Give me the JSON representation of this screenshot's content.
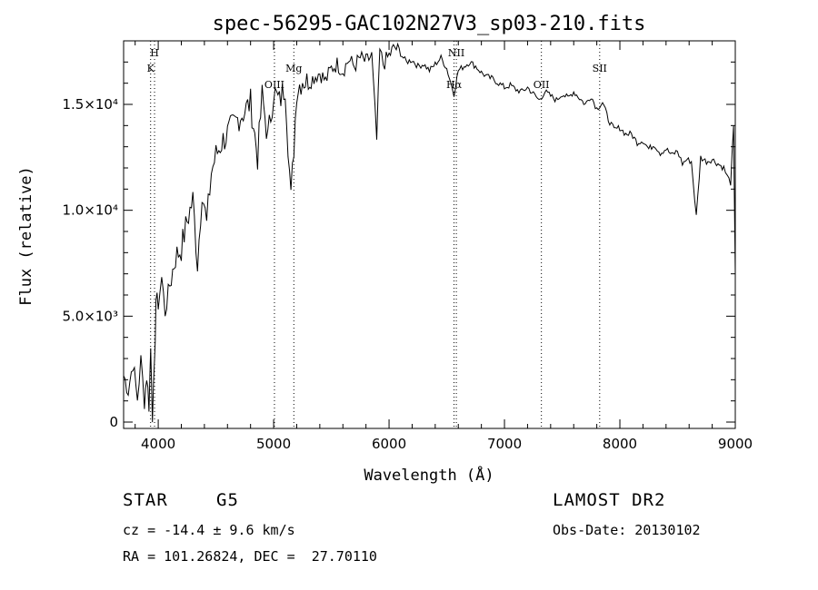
{
  "chart_data": {
    "type": "line",
    "title": "spec-56295-GAC102N27V3_sp03-210.fits",
    "xlabel": "Wavelength (Å)",
    "ylabel": "Flux (relative)",
    "xlim": [
      3700,
      9000
    ],
    "ylim": [
      -300,
      18000
    ],
    "x_ticks": [
      4000,
      5000,
      6000,
      7000,
      8000,
      9000
    ],
    "x_tick_labels": [
      "4000",
      "5000",
      "6000",
      "7000",
      "8000",
      "9000"
    ],
    "y_ticks": [
      0,
      5000,
      10000,
      15000
    ],
    "y_tick_labels": [
      "0",
      "5.0×10³",
      "1.0×10⁴",
      "1.5×10⁴"
    ],
    "grid": false,
    "line_color": "#000000",
    "marker_line_style": "dotted",
    "series": [
      {
        "x": [
          3700,
          3740,
          3780,
          3820,
          3850,
          3880,
          3900,
          3920,
          3935,
          3950,
          3968,
          3980,
          4000,
          4030,
          4060,
          4100,
          4150,
          4200,
          4250,
          4300,
          4340,
          4380,
          4420,
          4460,
          4500,
          4550,
          4600,
          4650,
          4700,
          4750,
          4800,
          4861,
          4900,
          4950,
          5000,
          5050,
          5100,
          5150,
          5175,
          5200,
          5250,
          5300,
          5350,
          5400,
          5450,
          5500,
          5550,
          5600,
          5650,
          5700,
          5750,
          5800,
          5850,
          5893,
          5920,
          5950,
          6000,
          6050,
          6100,
          6150,
          6200,
          6250,
          6300,
          6350,
          6400,
          6450,
          6500,
          6563,
          6600,
          6650,
          6700,
          6750,
          6800,
          6850,
          6900,
          6950,
          7000,
          7050,
          7100,
          7150,
          7200,
          7250,
          7300,
          7350,
          7400,
          7450,
          7500,
          7550,
          7600,
          7650,
          7700,
          7750,
          7800,
          7850,
          7900,
          7950,
          8000,
          8050,
          8100,
          8150,
          8200,
          8250,
          8300,
          8350,
          8400,
          8450,
          8498,
          8542,
          8580,
          8620,
          8662,
          8700,
          8750,
          8800,
          8850,
          8900,
          8930,
          8960,
          8985,
          9000
        ],
        "y": [
          2200,
          1500,
          2800,
          1100,
          2900,
          1000,
          2200,
          800,
          3500,
          400,
          2500,
          5800,
          5600,
          6800,
          5200,
          6500,
          7800,
          8200,
          9500,
          10500,
          7500,
          11000,
          9300,
          11800,
          12600,
          13200,
          13600,
          14000,
          14400,
          14700,
          15100,
          12500,
          15400,
          13400,
          15600,
          15100,
          15900,
          10500,
          13000,
          15700,
          16200,
          16000,
          16300,
          16500,
          16100,
          16700,
          16900,
          16600,
          17100,
          16800,
          17200,
          17000,
          17300,
          13300,
          17500,
          16900,
          17300,
          17700,
          17400,
          17000,
          17100,
          16800,
          16900,
          16600,
          16900,
          17200,
          16700,
          15500,
          16600,
          16800,
          17000,
          16800,
          16500,
          16300,
          16200,
          16000,
          15800,
          15900,
          15700,
          15600,
          15800,
          15500,
          15200,
          15600,
          15400,
          15200,
          15500,
          15300,
          15600,
          15300,
          15000,
          15400,
          14800,
          15100,
          14300,
          13800,
          13900,
          13600,
          13600,
          13200,
          13300,
          12900,
          13100,
          12700,
          12900,
          12600,
          12800,
          12200,
          12400,
          12300,
          9700,
          12500,
          12300,
          12400,
          12200,
          12000,
          11600,
          11300,
          13900,
          7000
        ]
      }
    ],
    "line_markers": [
      {
        "x": 3934,
        "label": "K",
        "row": 2
      },
      {
        "x": 3968,
        "label": "H",
        "row": 1
      },
      {
        "x": 5007,
        "label": "OIII",
        "row": 3
      },
      {
        "x": 5175,
        "label": "Mg",
        "row": 2
      },
      {
        "x": 6563,
        "label": "Hα",
        "row": 3
      },
      {
        "x": 6583,
        "label": "NII",
        "row": 1
      },
      {
        "x": 7320,
        "label": "OII",
        "row": 3
      },
      {
        "x": 7825,
        "label": "SII",
        "row": 2
      }
    ]
  },
  "info": {
    "object_class": "STAR",
    "subclass": "G5",
    "survey": "LAMOST DR2",
    "velocity": "cz = -14.4 ± 9.6 km/s",
    "obs_date": "Obs-Date: 20130102",
    "coords": "RA = 101.26824, DEC =  27.70110"
  }
}
